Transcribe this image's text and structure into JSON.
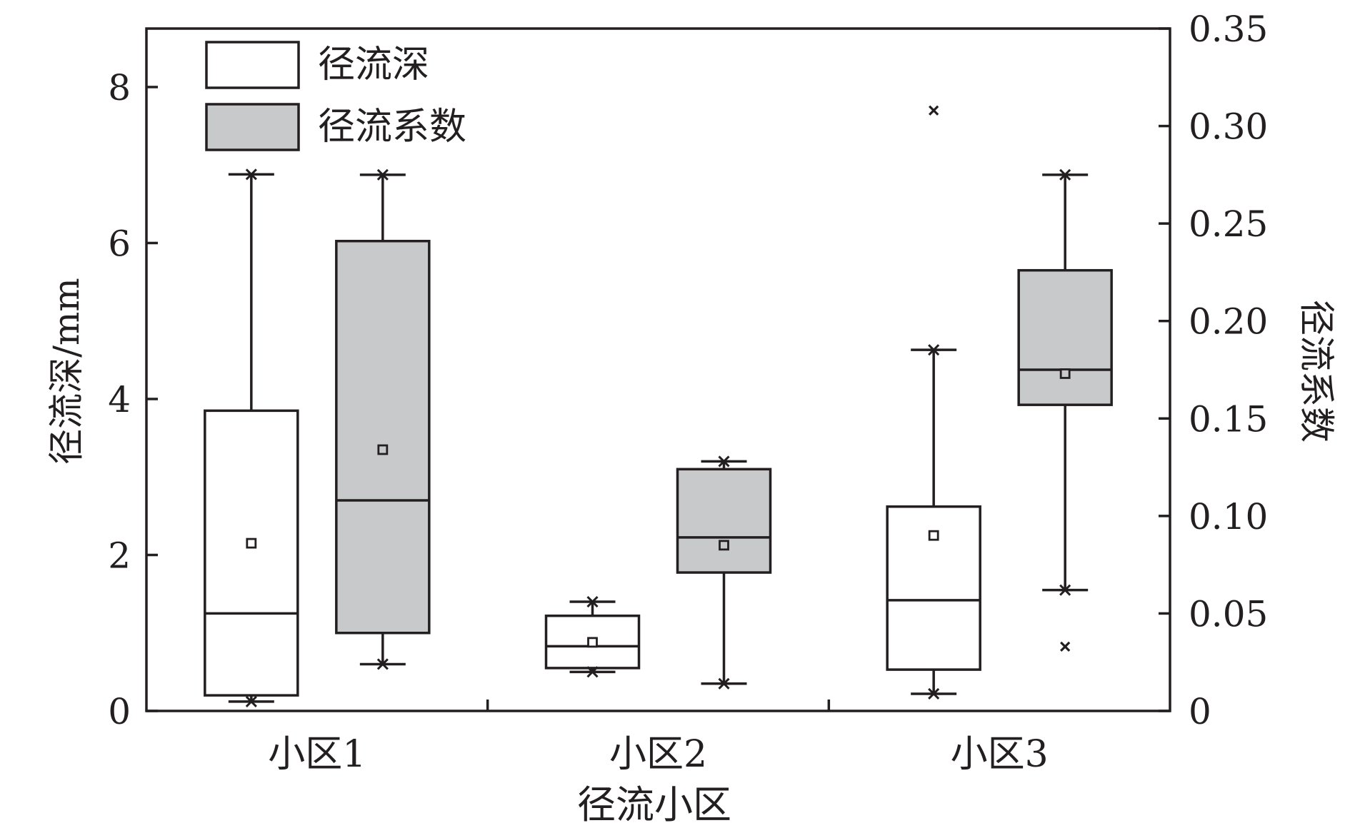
{
  "chart_data": {
    "type": "box",
    "xlabel": "径流小区",
    "ylabel_left": "径流深/mm",
    "ylabel_right": "径流系数",
    "categories": [
      "小区1",
      "小区2",
      "小区3"
    ],
    "y_left": {
      "lim": [
        0,
        8.75
      ],
      "ticks": [
        "0",
        "2",
        "4",
        "6",
        "8"
      ]
    },
    "y_right": {
      "lim": [
        0,
        0.35
      ],
      "ticks": [
        "0",
        "0.05",
        "0.10",
        "0.15",
        "0.20",
        "0.25",
        "0.30",
        "0.35"
      ]
    },
    "legend": {
      "placement": "top-left",
      "items": [
        "径流深",
        "径流系数"
      ]
    },
    "colors": {
      "axis": "#231f20",
      "box_runoff_depth": "#ffffff",
      "box_runoff_coefficient": "#c8c9cb"
    },
    "series": [
      {
        "name": "径流深",
        "axis": "left",
        "boxes": [
          {
            "category": "小区1",
            "whisker_low": 0.12,
            "q1": 0.2,
            "median": 1.25,
            "q3": 3.85,
            "whisker_high": 6.88,
            "mean": 2.15,
            "outliers": []
          },
          {
            "category": "小区2",
            "whisker_low": 0.5,
            "q1": 0.55,
            "median": 0.83,
            "q3": 1.22,
            "whisker_high": 1.4,
            "mean": 0.88,
            "outliers": []
          },
          {
            "category": "小区3",
            "whisker_low": 0.22,
            "q1": 0.53,
            "median": 1.42,
            "q3": 2.62,
            "whisker_high": 4.63,
            "mean": 2.25,
            "outliers": [
              7.7
            ]
          }
        ]
      },
      {
        "name": "径流系数",
        "axis": "right",
        "boxes": [
          {
            "category": "小区1",
            "whisker_low": 0.024,
            "q1": 0.04,
            "median": 0.108,
            "q3": 0.241,
            "whisker_high": 0.275,
            "mean": 0.134,
            "outliers": []
          },
          {
            "category": "小区2",
            "whisker_low": 0.014,
            "q1": 0.071,
            "median": 0.089,
            "q3": 0.124,
            "whisker_high": 0.128,
            "mean": 0.085,
            "outliers": []
          },
          {
            "category": "小区3",
            "whisker_low": 0.062,
            "q1": 0.157,
            "median": 0.175,
            "q3": 0.226,
            "whisker_high": 0.275,
            "mean": 0.173,
            "outliers": [
              0.033
            ]
          }
        ]
      }
    ]
  }
}
